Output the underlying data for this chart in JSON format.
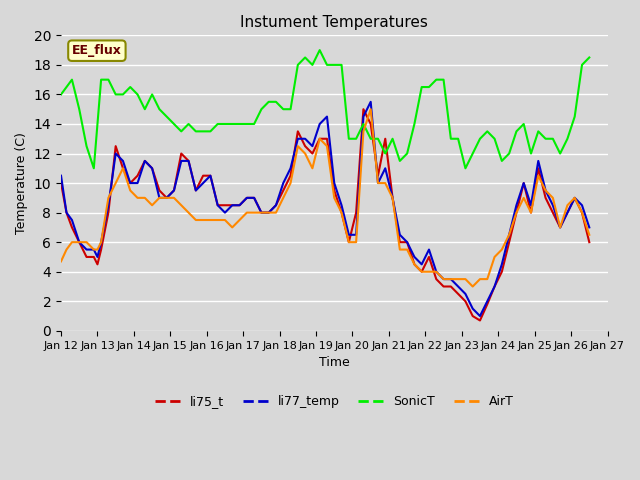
{
  "title": "Instument Temperatures",
  "xlabel": "Time",
  "ylabel": "Temperature (C)",
  "ylim": [
    0,
    20
  ],
  "background_color": "#e8e8e8",
  "plot_bg_color": "#d8d8d8",
  "annotation_text": "EE_flux",
  "annotation_bg": "#ffffcc",
  "annotation_border": "#888800",
  "series": {
    "li75_t": {
      "color": "#cc0000",
      "lw": 1.5,
      "x": [
        0,
        0.15,
        0.3,
        0.5,
        0.7,
        0.9,
        1.0,
        1.1,
        1.3,
        1.5,
        1.7,
        1.9,
        2.1,
        2.3,
        2.5,
        2.7,
        2.9,
        3.1,
        3.3,
        3.5,
        3.7,
        3.9,
        4.1,
        4.3,
        4.5,
        4.7,
        4.9,
        5.1,
        5.3,
        5.5,
        5.7,
        5.9,
        6.1,
        6.3,
        6.5,
        6.7,
        6.9,
        7.1,
        7.3,
        7.5,
        7.7,
        7.9,
        8.1,
        8.3,
        8.5,
        8.7,
        8.9,
        9.1,
        9.3,
        9.5,
        9.7,
        9.9,
        10.1,
        10.3,
        10.5,
        10.7,
        10.9,
        11.1,
        11.3,
        11.5,
        11.7,
        11.9,
        12.1,
        12.3,
        12.5,
        12.7,
        12.9,
        13.1,
        13.3,
        13.5,
        13.7,
        13.9,
        14.1,
        14.3,
        14.5
      ],
      "y": [
        10,
        8,
        7,
        6,
        5,
        5,
        4.5,
        5.5,
        8,
        12.5,
        11,
        10,
        10.5,
        11.5,
        11,
        9.5,
        9,
        9.5,
        12,
        11.5,
        9.5,
        10.5,
        10.5,
        8.5,
        8.5,
        8.5,
        8.5,
        9,
        9,
        8,
        8,
        8.5,
        9.5,
        10.5,
        13.5,
        12.5,
        12,
        13,
        13,
        9.5,
        8,
        6,
        8,
        15,
        14,
        10.5,
        13,
        9,
        6,
        6,
        4.5,
        4,
        5,
        3.5,
        3,
        3,
        2.5,
        2,
        1,
        0.7,
        1.8,
        3,
        4,
        6,
        8,
        10,
        8,
        11,
        9,
        8,
        7,
        8,
        9,
        8,
        6
      ]
    },
    "li77_temp": {
      "color": "#0000cc",
      "lw": 1.5,
      "x": [
        0,
        0.15,
        0.3,
        0.5,
        0.7,
        0.9,
        1.0,
        1.1,
        1.3,
        1.5,
        1.7,
        1.9,
        2.1,
        2.3,
        2.5,
        2.7,
        2.9,
        3.1,
        3.3,
        3.5,
        3.7,
        3.9,
        4.1,
        4.3,
        4.5,
        4.7,
        4.9,
        5.1,
        5.3,
        5.5,
        5.7,
        5.9,
        6.1,
        6.3,
        6.5,
        6.7,
        6.9,
        7.1,
        7.3,
        7.5,
        7.7,
        7.9,
        8.1,
        8.3,
        8.5,
        8.7,
        8.9,
        9.1,
        9.3,
        9.5,
        9.7,
        9.9,
        10.1,
        10.3,
        10.5,
        10.7,
        10.9,
        11.1,
        11.3,
        11.5,
        11.7,
        11.9,
        12.1,
        12.3,
        12.5,
        12.7,
        12.9,
        13.1,
        13.3,
        13.5,
        13.7,
        13.9,
        14.1,
        14.3,
        14.5
      ],
      "y": [
        10.5,
        8,
        7.5,
        6,
        5.5,
        5.5,
        5,
        6,
        8.5,
        12,
        11.5,
        10,
        10,
        11.5,
        11,
        9,
        9,
        9.5,
        11.5,
        11.5,
        9.5,
        10,
        10.5,
        8.5,
        8,
        8.5,
        8.5,
        9,
        9,
        8,
        8,
        8.5,
        10,
        11,
        13,
        13,
        12.5,
        14,
        14.5,
        10,
        8.5,
        6.5,
        6.5,
        14.5,
        15.5,
        10,
        11,
        9,
        6.5,
        6,
        5,
        4.5,
        5.5,
        4,
        3.5,
        3.5,
        3,
        2.5,
        1.5,
        1,
        2,
        3,
        4.5,
        6.5,
        8.5,
        10,
        8.5,
        11.5,
        9.5,
        8.5,
        7,
        8,
        9,
        8.5,
        7
      ]
    },
    "SonicT": {
      "color": "#00ee00",
      "lw": 1.5,
      "x": [
        0,
        0.15,
        0.3,
        0.5,
        0.7,
        0.9,
        1.0,
        1.1,
        1.3,
        1.5,
        1.7,
        1.9,
        2.1,
        2.3,
        2.5,
        2.7,
        2.9,
        3.1,
        3.3,
        3.5,
        3.7,
        3.9,
        4.1,
        4.3,
        4.5,
        4.7,
        4.9,
        5.1,
        5.3,
        5.5,
        5.7,
        5.9,
        6.1,
        6.3,
        6.5,
        6.7,
        6.9,
        7.1,
        7.3,
        7.5,
        7.7,
        7.9,
        8.1,
        8.3,
        8.5,
        8.7,
        8.9,
        9.1,
        9.3,
        9.5,
        9.7,
        9.9,
        10.1,
        10.3,
        10.5,
        10.7,
        10.9,
        11.1,
        11.3,
        11.5,
        11.7,
        11.9,
        12.1,
        12.3,
        12.5,
        12.7,
        12.9,
        13.1,
        13.3,
        13.5,
        13.7,
        13.9,
        14.1,
        14.3,
        14.5
      ],
      "y": [
        16,
        16.5,
        17,
        15,
        12.5,
        11,
        14,
        17,
        17,
        16,
        16,
        16.5,
        16,
        15,
        16,
        15,
        14.5,
        14,
        13.5,
        14,
        13.5,
        13.5,
        13.5,
        14,
        14,
        14,
        14,
        14,
        14,
        15,
        15.5,
        15.5,
        15,
        15,
        18,
        18.5,
        18,
        19,
        18,
        18,
        18,
        13,
        13,
        14,
        13,
        13,
        12,
        13,
        11.5,
        12,
        14,
        16.5,
        16.5,
        17,
        17,
        13,
        13,
        11,
        12,
        13,
        13.5,
        13,
        11.5,
        12,
        13.5,
        14,
        12,
        13.5,
        13,
        13,
        12,
        13,
        14.5,
        18,
        18.5
      ]
    },
    "AirT": {
      "color": "#ff8800",
      "lw": 1.5,
      "x": [
        0,
        0.15,
        0.3,
        0.5,
        0.7,
        0.9,
        1.0,
        1.1,
        1.3,
        1.5,
        1.7,
        1.9,
        2.1,
        2.3,
        2.5,
        2.7,
        2.9,
        3.1,
        3.3,
        3.5,
        3.7,
        3.9,
        4.1,
        4.3,
        4.5,
        4.7,
        4.9,
        5.1,
        5.3,
        5.5,
        5.7,
        5.9,
        6.1,
        6.3,
        6.5,
        6.7,
        6.9,
        7.1,
        7.3,
        7.5,
        7.7,
        7.9,
        8.1,
        8.3,
        8.5,
        8.7,
        8.9,
        9.1,
        9.3,
        9.5,
        9.7,
        9.9,
        10.1,
        10.3,
        10.5,
        10.7,
        10.9,
        11.1,
        11.3,
        11.5,
        11.7,
        11.9,
        12.1,
        12.3,
        12.5,
        12.7,
        12.9,
        13.1,
        13.3,
        13.5,
        13.7,
        13.9,
        14.1,
        14.3,
        14.5
      ],
      "y": [
        4.7,
        5.5,
        6,
        6,
        6,
        5.5,
        5.5,
        6,
        9,
        10,
        11,
        9.5,
        9,
        9,
        8.5,
        9,
        9,
        9,
        8.5,
        8,
        7.5,
        7.5,
        7.5,
        7.5,
        7.5,
        7,
        7.5,
        8,
        8,
        8,
        8,
        8,
        9,
        10,
        12.5,
        12,
        11,
        13,
        12.5,
        9,
        8,
        6,
        6,
        13.5,
        15,
        10,
        10,
        9,
        5.5,
        5.5,
        4.5,
        4,
        4,
        4,
        3.5,
        3.5,
        3.5,
        3.5,
        3,
        3.5,
        3.5,
        5,
        5.5,
        6.5,
        8,
        9,
        8,
        10.5,
        9.5,
        9,
        7,
        8.5,
        9,
        8,
        6.5
      ]
    }
  },
  "xticks": [
    "Jan 12",
    "Jan 13",
    "Jan 14",
    "Jan 15",
    "Jan 16",
    "Jan 17",
    "Jan 18",
    "Jan 19",
    "Jan 20",
    "Jan 21",
    "Jan 22",
    "Jan 23",
    "Jan 24",
    "Jan 25",
    "Jan 26",
    "Jan 27"
  ],
  "xtick_positions": [
    0,
    1,
    2,
    3,
    4,
    5,
    6,
    7,
    8,
    9,
    10,
    11,
    12,
    13,
    14,
    15
  ],
  "legend_labels": [
    "li75_t",
    "li77_temp",
    "SonicT",
    "AirT"
  ],
  "legend_colors": [
    "#cc0000",
    "#0000cc",
    "#00ee00",
    "#ff8800"
  ]
}
